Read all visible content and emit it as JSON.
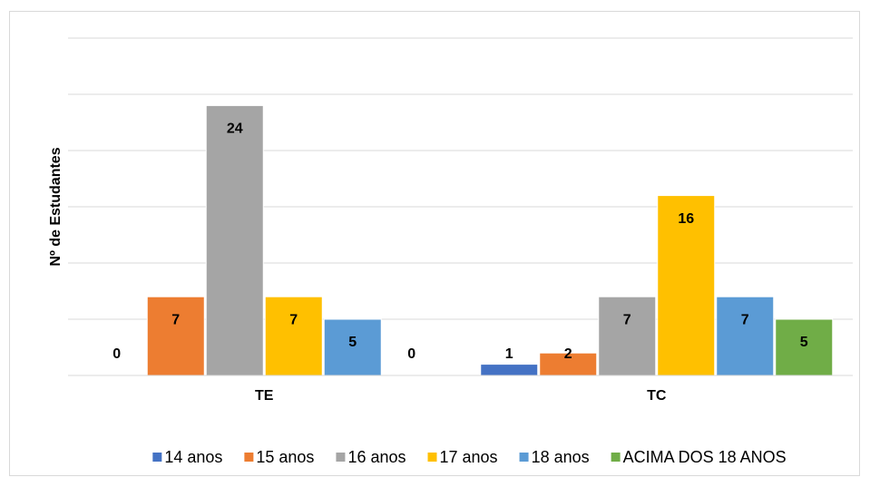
{
  "chart_data": {
    "type": "bar",
    "y_label": "Nº de Estudantes",
    "categories": [
      "TE",
      "TC"
    ],
    "series": [
      {
        "name": "14 anos",
        "color": "#4472c4",
        "values": [
          0,
          1
        ]
      },
      {
        "name": "15 anos",
        "color": "#ed7d31",
        "values": [
          7,
          2
        ]
      },
      {
        "name": "16 anos",
        "color": "#a5a5a5",
        "values": [
          24,
          7
        ]
      },
      {
        "name": "17 anos",
        "color": "#ffc000",
        "values": [
          7,
          16
        ]
      },
      {
        "name": "18 anos",
        "color": "#5b9bd5",
        "values": [
          5,
          7
        ]
      },
      {
        "name": "ACIMA DOS 18 ANOS",
        "color": "#70ad47",
        "values": [
          0,
          5
        ]
      }
    ],
    "ylim": [
      0,
      30
    ],
    "yticks": [
      0,
      5,
      10,
      15,
      20,
      25,
      30
    ],
    "grid": true,
    "legend": "bottom"
  }
}
